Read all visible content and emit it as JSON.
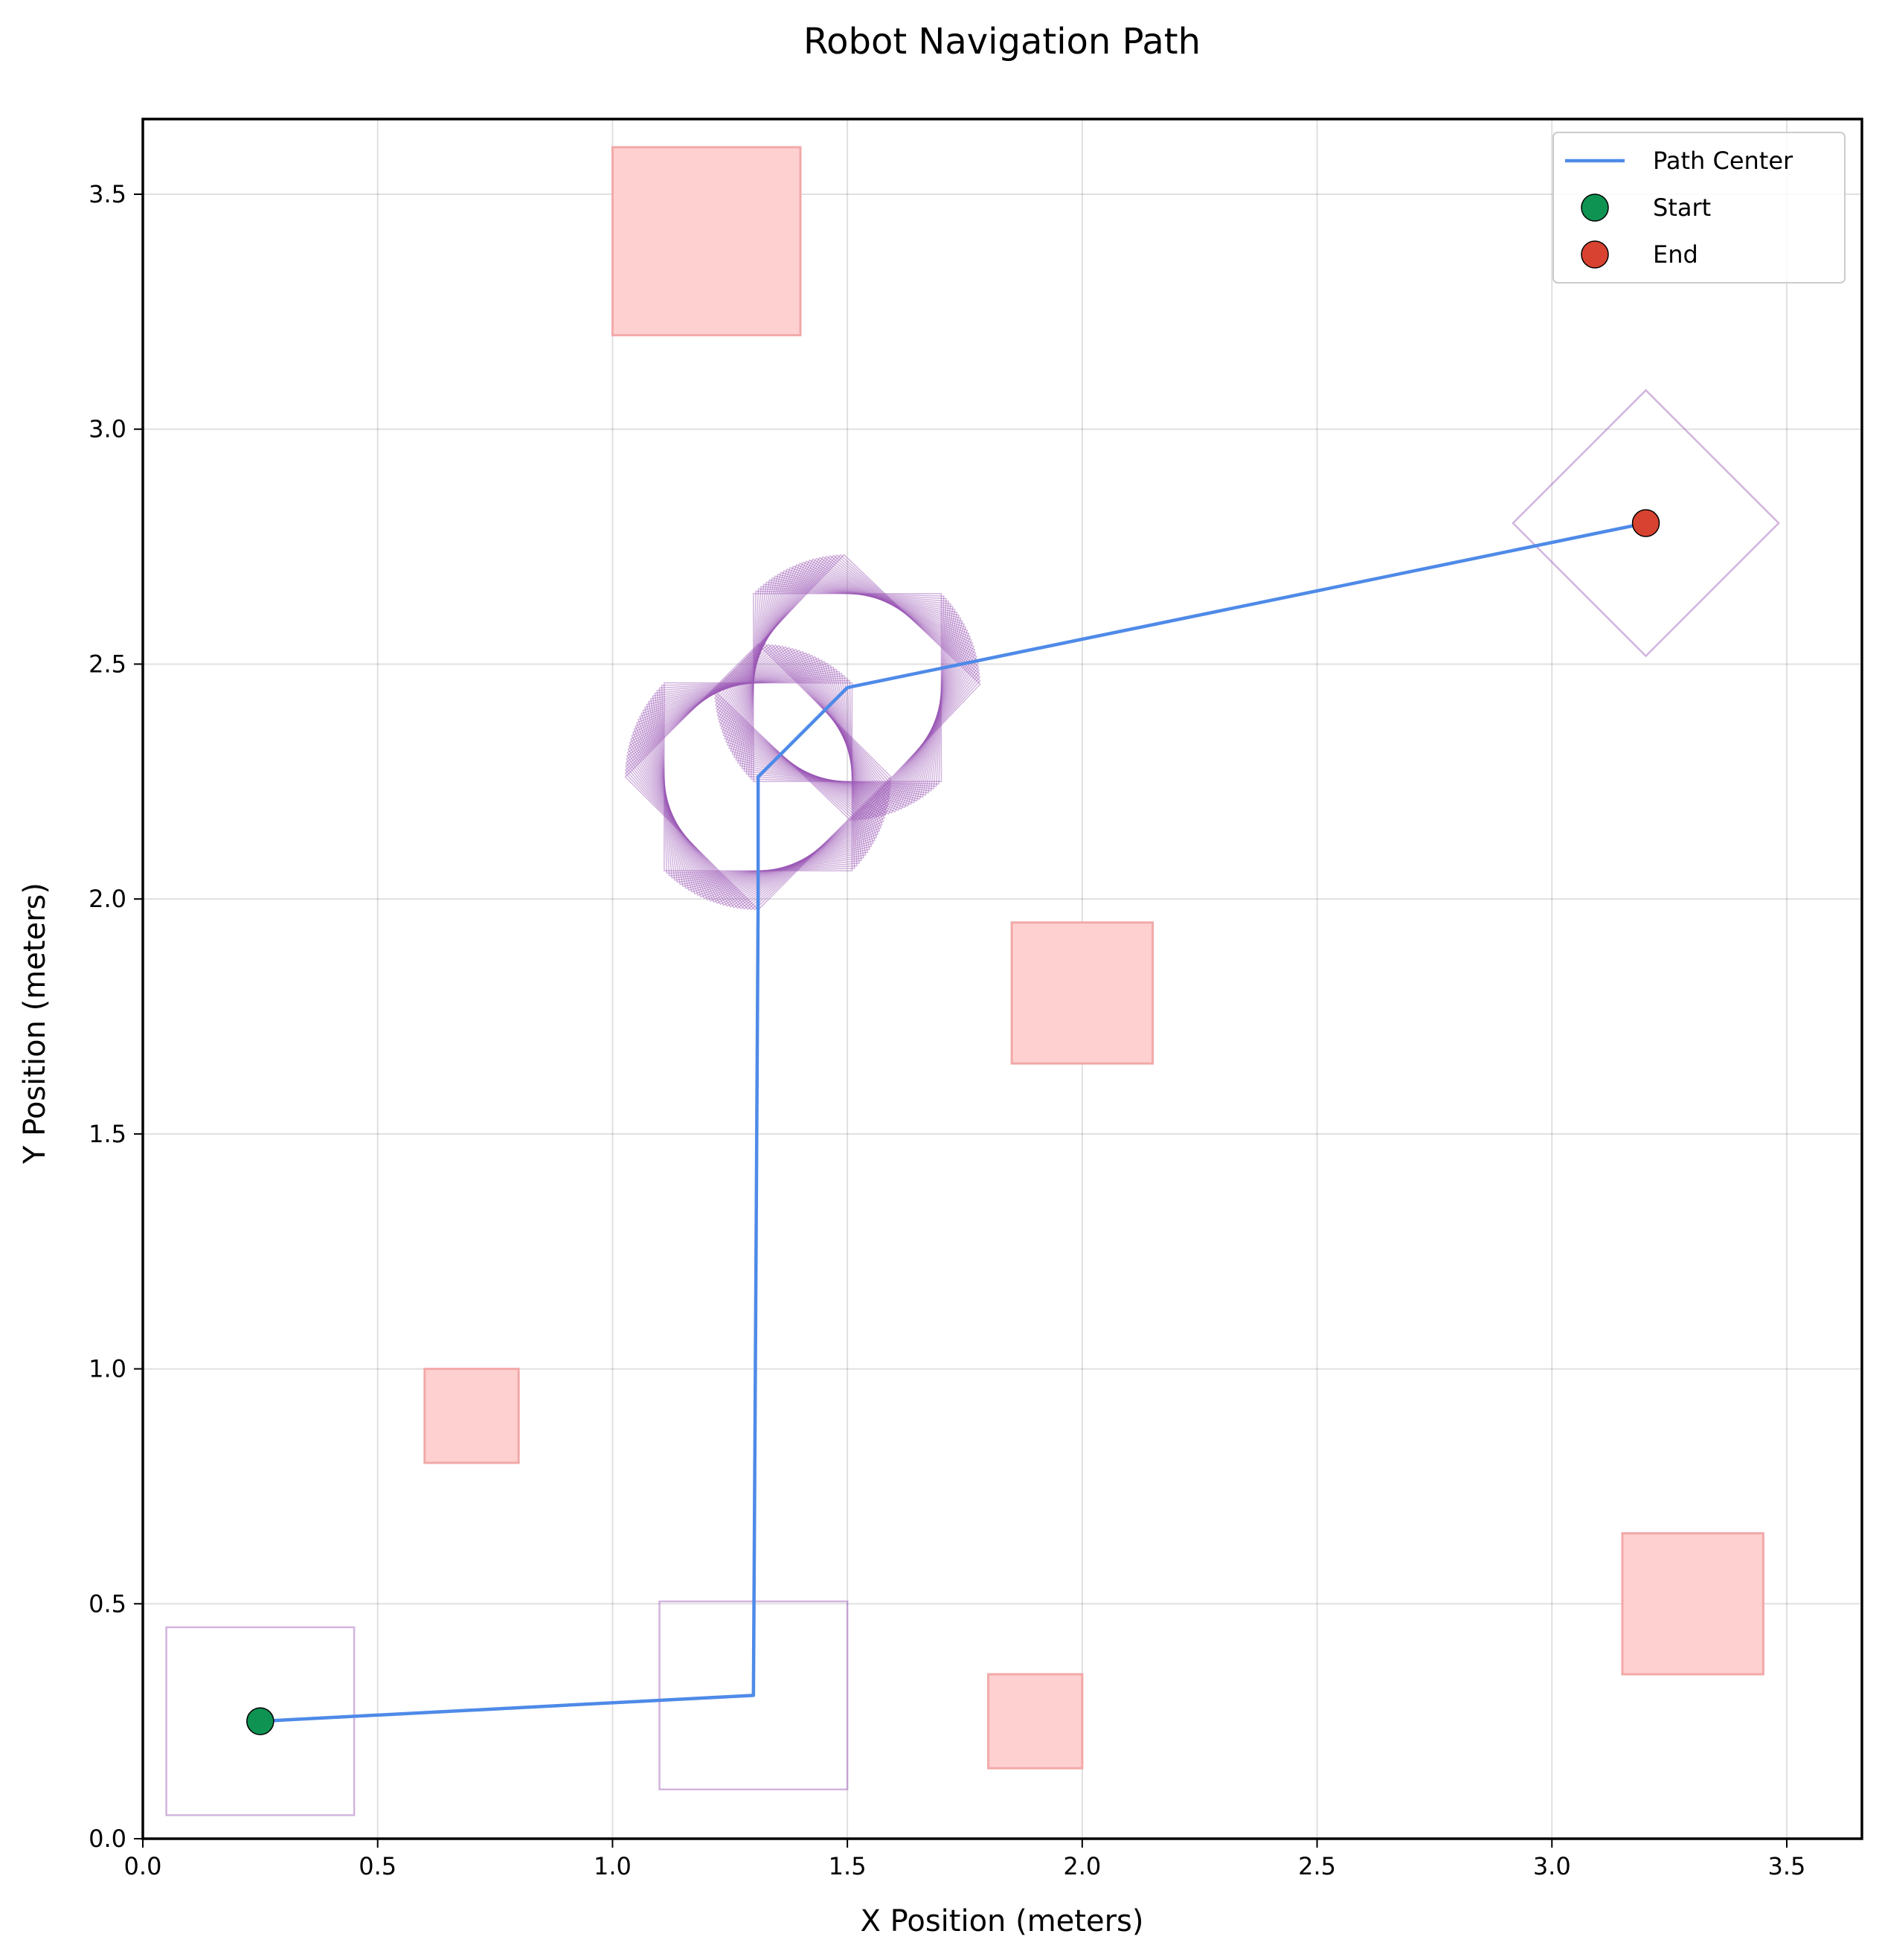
{
  "chart_data": {
    "type": "line",
    "title": "Robot Navigation Path",
    "xlabel": "X Position (meters)",
    "ylabel": "Y Position (meters)",
    "xlim": [
      0,
      3.66
    ],
    "ylim": [
      0,
      3.66
    ],
    "xticks": [
      0.0,
      0.5,
      1.0,
      1.5,
      2.0,
      2.5,
      3.0,
      3.5
    ],
    "yticks": [
      0.0,
      0.5,
      1.0,
      1.5,
      2.0,
      2.5,
      3.0,
      3.5
    ],
    "xtick_labels": [
      "0.0",
      "0.5",
      "1.0",
      "1.5",
      "2.0",
      "2.5",
      "3.0",
      "3.5"
    ],
    "ytick_labels": [
      "0.0",
      "0.5",
      "1.0",
      "1.5",
      "2.0",
      "2.5",
      "3.0",
      "3.5"
    ],
    "grid": true,
    "legend_position": "top-right",
    "colors": {
      "path": "#4e8ae8",
      "start": "#0e9352",
      "end": "#d84331",
      "obstacle_fill": "#ffd0d0",
      "obstacle_edge": "#f2a9a9",
      "footprint": "#9b59b6"
    },
    "legend": [
      {
        "label": "Path Center",
        "kind": "line",
        "color": "#4e8ae8"
      },
      {
        "label": "Start",
        "kind": "marker",
        "color": "#0e9352"
      },
      {
        "label": "End",
        "kind": "marker",
        "color": "#d84331"
      }
    ],
    "path": [
      {
        "x": 0.25,
        "y": 0.25
      },
      {
        "x": 1.3,
        "y": 0.305
      },
      {
        "x": 1.31,
        "y": 2.0
      },
      {
        "x": 1.31,
        "y": 2.26
      },
      {
        "x": 1.5,
        "y": 2.45
      },
      {
        "x": 3.2,
        "y": 2.8
      }
    ],
    "start": {
      "x": 0.25,
      "y": 0.25
    },
    "end": {
      "x": 3.2,
      "y": 2.8
    },
    "obstacles": [
      {
        "x": 1.0,
        "y": 3.2,
        "w": 0.4,
        "h": 0.4
      },
      {
        "x": 1.85,
        "y": 1.65,
        "w": 0.3,
        "h": 0.3
      },
      {
        "x": 0.6,
        "y": 0.8,
        "w": 0.2,
        "h": 0.2
      },
      {
        "x": 1.8,
        "y": 0.15,
        "w": 0.2,
        "h": 0.2
      },
      {
        "x": 3.15,
        "y": 0.35,
        "w": 0.3,
        "h": 0.3
      }
    ],
    "footprints": [
      {
        "cx": 0.25,
        "cy": 0.25,
        "size": 0.4,
        "angle_deg": 0
      },
      {
        "cx": 1.3,
        "cy": 0.305,
        "size": 0.4,
        "angle_deg": 0
      },
      {
        "cx": 3.2,
        "cy": 2.8,
        "size": 0.4,
        "angle_deg": 45
      }
    ],
    "rotation_sweeps": [
      {
        "cx": 1.31,
        "cy": 2.26,
        "size": 0.4,
        "from_deg": 0,
        "to_deg": 45,
        "steps": 30,
        "first_drawn": true
      },
      {
        "cx": 1.5,
        "cy": 2.45,
        "size": 0.4,
        "from_deg": 45,
        "to_deg": 90,
        "steps": 30,
        "first_drawn": false
      }
    ]
  }
}
